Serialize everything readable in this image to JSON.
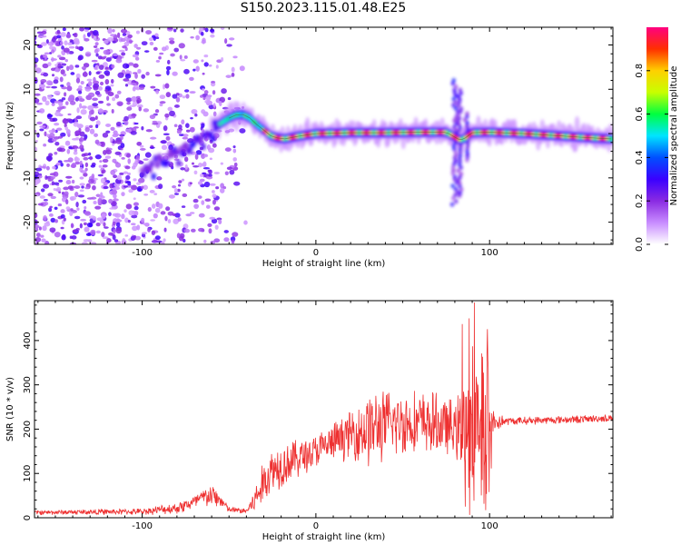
{
  "title": "S150.2023.115.01.48.E25",
  "chart_data": [
    {
      "type": "heatmap",
      "xlabel": "Height of straight line (km)",
      "ylabel": "Frequency (Hz)",
      "xlim": [
        -162,
        171
      ],
      "ylim": [
        -25,
        24
      ],
      "xticks": [
        -100,
        0,
        100
      ],
      "yticks": [
        -20,
        -10,
        0,
        10,
        20
      ],
      "ridge_curve": {
        "x": [
          -58,
          -54,
          -50,
          -46,
          -42,
          -38,
          -34,
          -30,
          -26,
          -22,
          -18,
          -10,
          0,
          20,
          40,
          60,
          75,
          80,
          83,
          86,
          90,
          100,
          120,
          140,
          160,
          170
        ],
        "y": [
          1.5,
          2.5,
          3.5,
          4.2,
          4.3,
          3.5,
          2.0,
          0.8,
          -0.5,
          -1.0,
          -1.2,
          -0.6,
          0.0,
          0.2,
          0.2,
          0.3,
          0.3,
          -0.8,
          -1.5,
          -1.0,
          0.2,
          0.3,
          0.0,
          -0.5,
          -1.0,
          -1.2
        ]
      },
      "grid": false,
      "colorbar": {
        "label": "Normalized spectral amplitude",
        "ticks": [
          0.0,
          0.2,
          0.4,
          0.6,
          0.8
        ],
        "range": [
          0,
          1
        ],
        "colors": [
          "#ffffff",
          "#c88cff",
          "#8a2be2",
          "#3a00ff",
          "#0050ff",
          "#00e5ff",
          "#00ff40",
          "#c8ff00",
          "#ffd000",
          "#ff3000",
          "#ff0080"
        ]
      }
    },
    {
      "type": "line",
      "xlabel": "Height of straight line (km)",
      "ylabel": "SNR (10 * v/v)",
      "xlim": [
        -162,
        171
      ],
      "ylim": [
        0,
        490
      ],
      "xticks": [
        -100,
        0,
        100
      ],
      "yticks": [
        0,
        100,
        200,
        300,
        400
      ],
      "grid": false,
      "series": [
        {
          "color": "#ee3030",
          "envelope_x": [
            -162,
            -100,
            -80,
            -70,
            -65,
            -60,
            -55,
            -50,
            -40,
            -35,
            -30,
            -25,
            -20,
            -10,
            0,
            10,
            20,
            30,
            40,
            50,
            60,
            70,
            80,
            85,
            90,
            95,
            100,
            103,
            110,
            130,
            150,
            171
          ],
          "mean": [
            12,
            14,
            22,
            35,
            45,
            50,
            40,
            18,
            15,
            40,
            80,
            110,
            120,
            135,
            150,
            170,
            190,
            200,
            210,
            215,
            215,
            210,
            200,
            200,
            210,
            200,
            210,
            215,
            218,
            220,
            222,
            225
          ],
          "spread": [
            6,
            8,
            15,
            20,
            25,
            30,
            20,
            8,
            8,
            35,
            55,
            60,
            60,
            50,
            45,
            50,
            60,
            100,
            90,
            85,
            80,
            80,
            70,
            120,
            200,
            220,
            200,
            30,
            10,
            10,
            10,
            10
          ]
        }
      ]
    }
  ]
}
